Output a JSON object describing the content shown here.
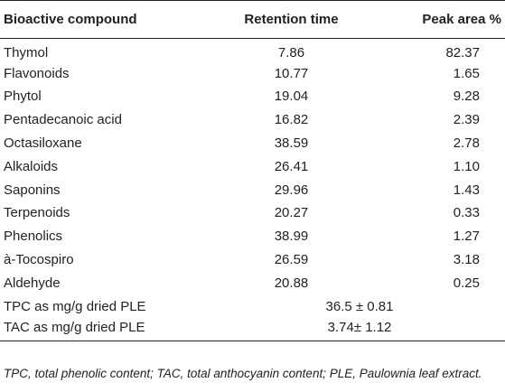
{
  "table": {
    "headers": {
      "compound": "Bioactive compound",
      "retention": "Retention time",
      "peak": "Peak area %"
    },
    "rows": [
      {
        "compound": "Thymol",
        "retention": "7.86",
        "peak": "82.37"
      },
      {
        "compound": "Flavonoids",
        "retention": "10.77",
        "peak": "1.65"
      },
      {
        "compound": "Phytol",
        "retention": "19.04",
        "peak": "9.28"
      },
      {
        "compound": "Pentadecanoic acid",
        "retention": "16.82",
        "peak": "2.39"
      },
      {
        "compound": "Octasiloxane",
        "retention": "38.59",
        "peak": "2.78"
      },
      {
        "compound": "Alkaloids",
        "retention": "26.41",
        "peak": "1.10"
      },
      {
        "compound": "Saponins",
        "retention": "29.96",
        "peak": "1.43"
      },
      {
        "compound": "Terpenoids",
        "retention": "20.27",
        "peak": "0.33"
      },
      {
        "compound": "Phenolics",
        "retention": "38.99",
        "peak": "1.27"
      },
      {
        "compound": "à-Tocospiro",
        "retention": "26.59",
        "peak": "3.18"
      },
      {
        "compound": "Aldehyde",
        "retention": "20.88",
        "peak": "0.25"
      }
    ],
    "summary_rows": [
      {
        "label": "TPC as mg/g dried PLE",
        "value": "36.5 ± 0.81"
      },
      {
        "label": "TAC as mg/g dried PLE",
        "value": "3.74± 1.12"
      }
    ]
  },
  "footnote": "TPC, total phenolic content; TAC, total anthocyanin content; PLE, Paulownia leaf extract."
}
